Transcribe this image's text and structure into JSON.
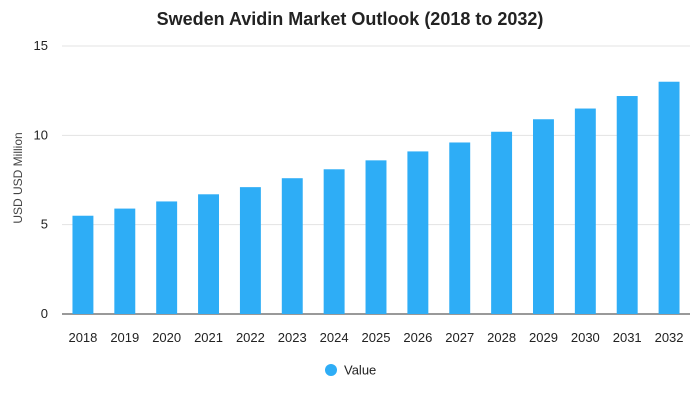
{
  "chart_data": {
    "type": "bar",
    "title": "Sweden Avidin Market Outlook (2018 to 2032)",
    "xlabel": "",
    "ylabel": "USD USD Million",
    "categories": [
      "2018",
      "2019",
      "2020",
      "2021",
      "2022",
      "2023",
      "2024",
      "2025",
      "2026",
      "2027",
      "2028",
      "2029",
      "2030",
      "2031",
      "2032"
    ],
    "series": [
      {
        "name": "Value",
        "color": "#2eadf6",
        "values": [
          5.5,
          5.9,
          6.3,
          6.7,
          7.1,
          7.6,
          8.1,
          8.6,
          9.1,
          9.6,
          10.2,
          10.9,
          11.5,
          12.2,
          13.0
        ]
      }
    ],
    "ylim": [
      0,
      15
    ],
    "yticks": [
      "0",
      "5",
      "10",
      "15"
    ],
    "grid": true,
    "legend_position": "bottom-center"
  }
}
